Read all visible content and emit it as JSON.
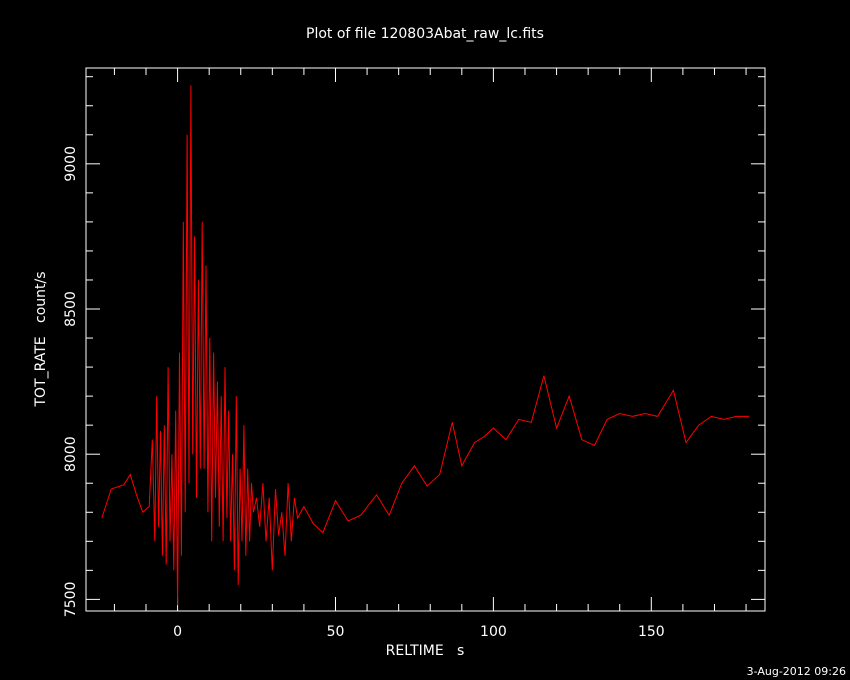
{
  "chart_data": {
    "type": "line",
    "title": "Plot of file 120803Abat_raw_lc.fits",
    "xlabel": "RELTIME   s",
    "ylabel": "TOT_RATE   count/s",
    "xlim": [
      -29,
      186
    ],
    "ylim": [
      7460,
      9330
    ],
    "x_ticks": [
      0,
      50,
      100,
      150
    ],
    "y_ticks": [
      7500,
      8000,
      8500,
      9000
    ],
    "x_tick_labels": [
      "0",
      "50",
      "100",
      "150"
    ],
    "y_tick_labels": [
      "7500",
      "8000",
      "8500",
      "9000"
    ],
    "grid": false,
    "legend": "none",
    "colors": {
      "background": "#000000",
      "axes": "#ffffff",
      "line": "#ff0000"
    },
    "series": [
      {
        "x": [
          -24,
          -21,
          -17,
          -15,
          -13,
          -11,
          -9,
          -8,
          -7.2,
          -6.6,
          -6,
          -5.4,
          -4.8,
          -4.2,
          -3.6,
          -3,
          -2.4,
          -1.8,
          -1.2,
          -0.6,
          0,
          0.6,
          1.2,
          1.8,
          2.4,
          3,
          3.6,
          4.2,
          4.8,
          5.4,
          6,
          6.6,
          7.2,
          7.8,
          8.4,
          9,
          9.6,
          10.2,
          10.8,
          11.4,
          12,
          12.6,
          13.2,
          13.8,
          14.4,
          15,
          15.6,
          16.2,
          16.8,
          17.4,
          18,
          18.6,
          19.2,
          19.8,
          20.4,
          21,
          21.6,
          22.2,
          22.8,
          23.4,
          24,
          25,
          26,
          27,
          28,
          29,
          30,
          31,
          32,
          33,
          34,
          35,
          36,
          37,
          38,
          40,
          43,
          46,
          50,
          54,
          58,
          63,
          67,
          71,
          75,
          79,
          83,
          87,
          90,
          94,
          97,
          100,
          104,
          108,
          112,
          116,
          120,
          124,
          128,
          132,
          136,
          140,
          144,
          148,
          152,
          157,
          161,
          165,
          169,
          173,
          177,
          181
        ],
        "y": [
          7780,
          7880,
          7895,
          7930,
          7860,
          7800,
          7820,
          8050,
          7700,
          8200,
          7750,
          8080,
          7650,
          8100,
          7620,
          8300,
          7700,
          8000,
          7600,
          8150,
          7480,
          8350,
          7650,
          8800,
          7800,
          9100,
          7900,
          9270,
          8000,
          8750,
          7850,
          8600,
          7950,
          8800,
          7950,
          8650,
          7800,
          8400,
          7700,
          8350,
          7850,
          8250,
          7750,
          8200,
          7700,
          8300,
          7780,
          8150,
          7700,
          8000,
          7600,
          8200,
          7550,
          7950,
          7700,
          8100,
          7650,
          7950,
          7700,
          7900,
          7800,
          7850,
          7750,
          7900,
          7700,
          7850,
          7600,
          7880,
          7720,
          7800,
          7650,
          7900,
          7700,
          7850,
          7780,
          7820,
          7760,
          7730,
          7840,
          7770,
          7790,
          7860,
          7790,
          7900,
          7960,
          7890,
          7930,
          8110,
          7960,
          8040,
          8060,
          8090,
          8050,
          8120,
          8110,
          8270,
          8090,
          8200,
          8050,
          8030,
          8120,
          8140,
          8130,
          8140,
          8130,
          8220,
          8040,
          8100,
          8130,
          8120,
          8130,
          8130
        ]
      }
    ]
  },
  "timestamp": "3-Aug-2012 09:26"
}
